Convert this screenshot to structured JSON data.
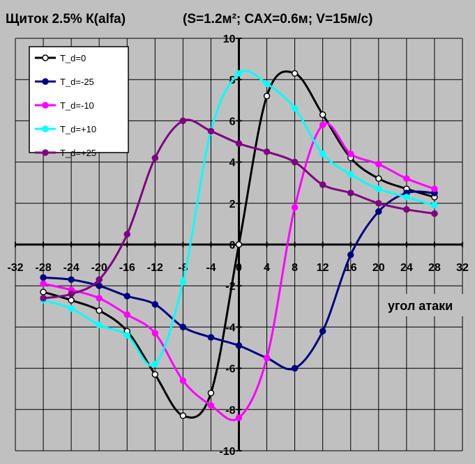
{
  "chart_data": {
    "type": "line",
    "title": "Щиток 2.5% К(alfa)",
    "subtitle": "(S=1.2м²; САХ=0.6м; V=15м/с)",
    "xlabel": "угол атаки",
    "ylabel": "",
    "xlim": [
      -32,
      32
    ],
    "ylim": [
      -10,
      10
    ],
    "x_ticks": [
      "-32",
      "-28",
      "-24",
      "-20",
      "-16",
      "-12",
      "-8",
      "-4",
      "0",
      "4",
      "8",
      "12",
      "16",
      "20",
      "24",
      "28",
      "32"
    ],
    "y_ticks": [
      "-10",
      "-8",
      "-6",
      "-4",
      "-2",
      "0",
      "2",
      "4",
      "6",
      "8",
      "10"
    ],
    "grid": true,
    "legend_position": "top-left",
    "colors": {
      "background": "#c0c0c0",
      "grid": "#000000",
      "legend_background": "#ffffff"
    },
    "series": [
      {
        "name": "T_d=0",
        "color": "#000000",
        "marker_fill": "#ffffff",
        "x": [
          -28,
          -24,
          -20,
          -16,
          -12,
          -8,
          -4,
          0,
          4,
          8,
          12,
          16,
          20,
          24,
          28
        ],
        "y": [
          -2.3,
          -2.7,
          -3.2,
          -4.2,
          -6.3,
          -8.3,
          -7.2,
          0,
          7.2,
          8.3,
          6.3,
          4.2,
          3.2,
          2.7,
          2.3
        ]
      },
      {
        "name": "T_d=-25",
        "color": "#000080",
        "marker_fill": "#000080",
        "x": [
          -28,
          -24,
          -20,
          -16,
          -12,
          -8,
          -4,
          0,
          4,
          8,
          12,
          16,
          20,
          24,
          28
        ],
        "y": [
          -1.6,
          -1.7,
          -2.0,
          -2.5,
          -2.9,
          -4.0,
          -4.5,
          -4.9,
          -5.5,
          -6.0,
          -4.2,
          -0.5,
          1.6,
          2.5,
          2.5
        ]
      },
      {
        "name": "T_d=-10",
        "color": "#ff00ff",
        "marker_fill": "#ff00ff",
        "x": [
          -28,
          -24,
          -20,
          -16,
          -12,
          -8,
          -4,
          0,
          4,
          8,
          12,
          16,
          20,
          24,
          28
        ],
        "y": [
          -1.9,
          -2.2,
          -2.6,
          -3.4,
          -4.3,
          -6.6,
          -7.8,
          -8.4,
          -5.5,
          1.8,
          5.8,
          4.4,
          3.9,
          3.2,
          2.7
        ]
      },
      {
        "name": "T_d=+10",
        "color": "#00ffff",
        "marker_fill": "#00ffff",
        "x": [
          -28,
          -24,
          -20,
          -16,
          -12,
          -8,
          -4,
          0,
          4,
          8,
          12,
          16,
          20,
          24,
          28
        ],
        "y": [
          -2.7,
          -3.1,
          -3.9,
          -4.4,
          -5.8,
          -1.8,
          5.5,
          8.3,
          7.8,
          6.6,
          4.4,
          3.4,
          2.7,
          2.3,
          1.9
        ]
      },
      {
        "name": "T_d=+25",
        "color": "#800080",
        "marker_fill": "#800080",
        "x": [
          -28,
          -24,
          -20,
          -16,
          -12,
          -8,
          -4,
          0,
          4,
          8,
          12,
          16,
          20,
          24,
          28
        ],
        "y": [
          -2.6,
          -2.4,
          -1.7,
          0.5,
          4.2,
          6.0,
          5.5,
          4.9,
          4.5,
          4.0,
          2.9,
          2.5,
          2.0,
          1.7,
          1.5
        ]
      }
    ]
  }
}
